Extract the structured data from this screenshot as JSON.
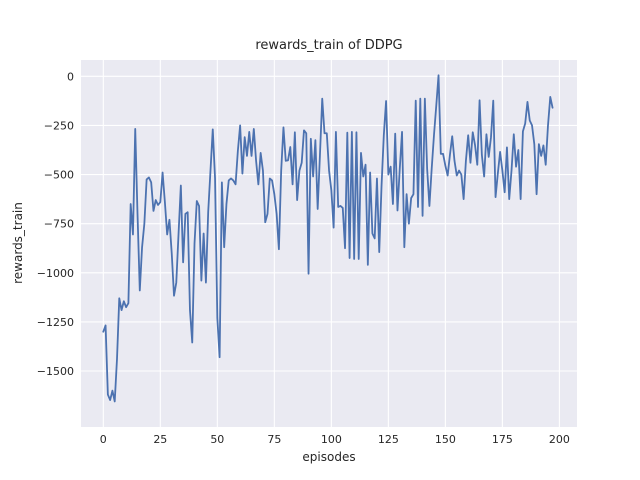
{
  "figure": {
    "background": "#ffffff"
  },
  "chart_data": {
    "type": "line",
    "title": "rewards_train of DDPG",
    "xlabel": "episodes",
    "ylabel": "rewards_train",
    "grid": true,
    "legend": "none",
    "plot_bg": "#eaeaf2",
    "grid_color": "#ffffff",
    "text_color": "#262626",
    "xlim": [
      -9.78,
      207.72
    ],
    "ylim": [
      -1785,
      83
    ],
    "xticks": [
      0,
      25,
      50,
      75,
      100,
      125,
      150,
      175,
      200
    ],
    "yticks": [
      0,
      -250,
      -500,
      -750,
      -1000,
      -1250,
      -1500
    ],
    "series": [
      {
        "name": "rewards_train",
        "color": "#4c72b0",
        "line_width": 1.8,
        "x0": 0,
        "dx": 1,
        "y": [
          -1300,
          -1268,
          -1620,
          -1648,
          -1600,
          -1655,
          -1440,
          -1130,
          -1190,
          -1145,
          -1175,
          -1155,
          -650,
          -805,
          -268,
          -700,
          -1090,
          -870,
          -750,
          -525,
          -515,
          -540,
          -685,
          -630,
          -655,
          -640,
          -490,
          -640,
          -805,
          -730,
          -900,
          -1117,
          -1050,
          -800,
          -556,
          -947,
          -700,
          -692,
          -1190,
          -1355,
          -850,
          -635,
          -660,
          -1040,
          -800,
          -1050,
          -690,
          -480,
          -270,
          -520,
          -1230,
          -1430,
          -540,
          -870,
          -650,
          -530,
          -520,
          -530,
          -550,
          -380,
          -250,
          -495,
          -310,
          -405,
          -283,
          -405,
          -268,
          -430,
          -550,
          -390,
          -480,
          -743,
          -700,
          -520,
          -530,
          -600,
          -700,
          -880,
          -480,
          -260,
          -430,
          -428,
          -360,
          -550,
          -285,
          -630,
          -480,
          -440,
          -275,
          -290,
          -1005,
          -318,
          -510,
          -325,
          -675,
          -400,
          -114,
          -290,
          -290,
          -480,
          -580,
          -770,
          -283,
          -665,
          -660,
          -670,
          -875,
          -287,
          -925,
          -283,
          -930,
          -285,
          -930,
          -390,
          -510,
          -450,
          -960,
          -490,
          -800,
          -825,
          -520,
          -895,
          -560,
          -300,
          -126,
          -500,
          -460,
          -650,
          -292,
          -683,
          -470,
          -283,
          -870,
          -600,
          -750,
          -620,
          -600,
          -124,
          -665,
          -114,
          -710,
          -114,
          -470,
          -660,
          -470,
          -300,
          -150,
          5,
          -395,
          -395,
          -455,
          -505,
          -400,
          -305,
          -430,
          -505,
          -480,
          -500,
          -625,
          -430,
          -300,
          -440,
          -285,
          -350,
          -450,
          -122,
          -400,
          -510,
          -295,
          -410,
          -310,
          -124,
          -615,
          -495,
          -385,
          -480,
          -590,
          -362,
          -625,
          -480,
          -295,
          -460,
          -375,
          -625,
          -280,
          -240,
          -130,
          -225,
          -250,
          -345,
          -600,
          -345,
          -405,
          -352,
          -450,
          -250,
          -105,
          -160
        ]
      }
    ]
  }
}
